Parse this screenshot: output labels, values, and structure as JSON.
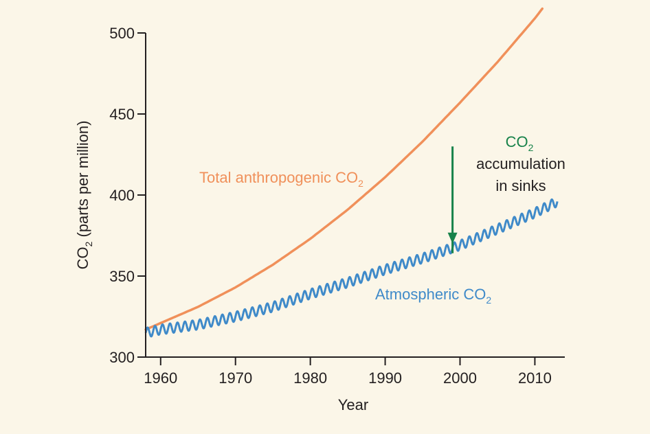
{
  "chart_data": {
    "type": "line",
    "title": "",
    "xlabel": "Year",
    "ylabel_prefix": "CO",
    "ylabel_sub": "2",
    "ylabel_suffix": " (parts per million)",
    "xlim": [
      1958,
      2014
    ],
    "ylim": [
      300,
      500
    ],
    "xticks": [
      1960,
      1970,
      1980,
      1990,
      2000,
      2010
    ],
    "yticks": [
      300,
      350,
      400,
      450,
      500
    ],
    "grid": false,
    "series": [
      {
        "name": "Total anthropogenic CO2",
        "label_main": "Total anthropogenic CO",
        "label_sub": "2",
        "color": "#f0905a",
        "x": [
          1958,
          1960,
          1965,
          1970,
          1975,
          1980,
          1985,
          1990,
          1995,
          2000,
          2005,
          2010,
          2011
        ],
        "y": [
          317,
          321,
          331,
          343,
          357,
          373,
          391,
          411,
          433,
          457,
          482,
          509,
          515
        ]
      },
      {
        "name": "Atmospheric CO2",
        "label_main": "Atmospheric CO",
        "label_sub": "2",
        "color": "#3f8ac9",
        "seasonal_amplitude": 3.0,
        "x": [
          1958,
          1960,
          1965,
          1970,
          1975,
          1980,
          1985,
          1990,
          1995,
          2000,
          2005,
          2010,
          2013
        ],
        "y": [
          315,
          317,
          320,
          325,
          331,
          339,
          346,
          354,
          361,
          369,
          379,
          389,
          396
        ]
      }
    ],
    "annotation": {
      "color": "#17824a",
      "line1_main": "CO",
      "line1_sub": "2",
      "line2": "accumulation",
      "line3": "in sinks",
      "arrow_x": 1999,
      "arrow_from_y": 430,
      "arrow_to_y": 370
    }
  }
}
